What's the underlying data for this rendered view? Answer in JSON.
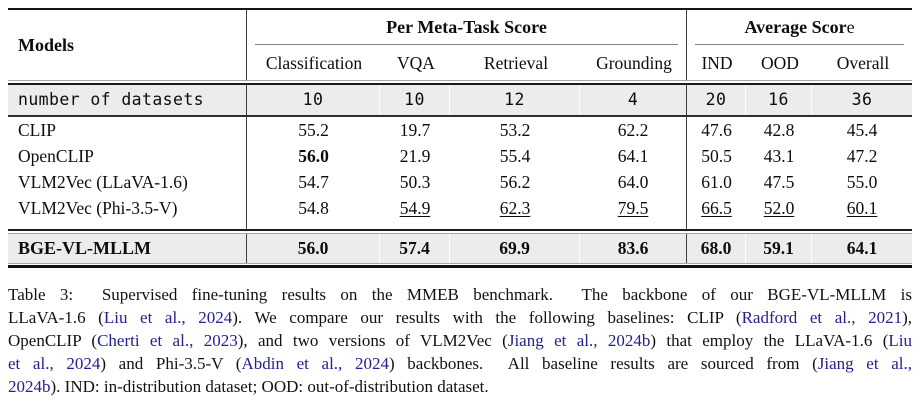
{
  "table": {
    "header": {
      "models_label": "Models",
      "groups": [
        {
          "name": "per-meta-task-score",
          "title_segments": [
            {
              "text": "Per Meta-Task Score",
              "bold": true
            }
          ],
          "columns": [
            "Classification",
            "VQA",
            "Retrieval",
            "Grounding"
          ]
        },
        {
          "name": "average-score",
          "title_segments": [
            {
              "text": "Average Scor",
              "bold": true
            },
            {
              "text": "e",
              "bold": false
            }
          ],
          "columns": [
            "IND",
            "OOD",
            "Overall"
          ]
        }
      ]
    },
    "meta_row": {
      "label": "number of datasets",
      "values": [
        "10",
        "10",
        "12",
        "4",
        "20",
        "16",
        "36"
      ]
    },
    "rows": [
      {
        "model": "CLIP",
        "values": [
          {
            "text": "55.2",
            "style": "normal"
          },
          {
            "text": "19.7",
            "style": "normal"
          },
          {
            "text": "53.2",
            "style": "normal"
          },
          {
            "text": "62.2",
            "style": "normal"
          },
          {
            "text": "47.6",
            "style": "normal"
          },
          {
            "text": "42.8",
            "style": "normal"
          },
          {
            "text": "45.4",
            "style": "normal"
          }
        ]
      },
      {
        "model": "OpenCLIP",
        "values": [
          {
            "text": "56.0",
            "style": "bold"
          },
          {
            "text": "21.9",
            "style": "normal"
          },
          {
            "text": "55.4",
            "style": "normal"
          },
          {
            "text": "64.1",
            "style": "normal"
          },
          {
            "text": "50.5",
            "style": "normal"
          },
          {
            "text": "43.1",
            "style": "normal"
          },
          {
            "text": "47.2",
            "style": "normal"
          }
        ]
      },
      {
        "model": "VLM2Vec (LLaVA-1.6)",
        "values": [
          {
            "text": "54.7",
            "style": "normal"
          },
          {
            "text": "50.3",
            "style": "normal"
          },
          {
            "text": "56.2",
            "style": "normal"
          },
          {
            "text": "64.0",
            "style": "normal"
          },
          {
            "text": "61.0",
            "style": "normal"
          },
          {
            "text": "47.5",
            "style": "normal"
          },
          {
            "text": "55.0",
            "style": "normal"
          }
        ]
      },
      {
        "model": "VLM2Vec (Phi-3.5-V)",
        "values": [
          {
            "text": "54.8",
            "style": "normal"
          },
          {
            "text": "54.9",
            "style": "underline"
          },
          {
            "text": "62.3",
            "style": "underline"
          },
          {
            "text": "79.5",
            "style": "underline"
          },
          {
            "text": "66.5",
            "style": "underline"
          },
          {
            "text": "52.0",
            "style": "underline"
          },
          {
            "text": "60.1",
            "style": "underline"
          }
        ]
      }
    ],
    "highlight_row": {
      "model": "BGE-VL-MLLM",
      "values": [
        {
          "text": "56.0",
          "style": "bold"
        },
        {
          "text": "57.4",
          "style": "bold"
        },
        {
          "text": "69.9",
          "style": "bold"
        },
        {
          "text": "83.6",
          "style": "bold"
        },
        {
          "text": "68.0",
          "style": "bold"
        },
        {
          "text": "59.1",
          "style": "bold"
        },
        {
          "text": "64.1",
          "style": "bold"
        }
      ]
    }
  },
  "caption": {
    "lines": [
      [
        {
          "text": "Table 3:  Supervised fine-tuning results on the MMEB benchmark.  The backbone of our BGE-VL-MLLM is",
          "cite": false
        }
      ],
      [
        {
          "text": "LLaVA-1.6 (",
          "cite": false
        },
        {
          "text": "Liu et al., 2024",
          "cite": true
        },
        {
          "text": "). We compare our results with the following baselines: CLIP (",
          "cite": false
        },
        {
          "text": "Radford et al., 2021",
          "cite": true
        },
        {
          "text": "),",
          "cite": false
        }
      ],
      [
        {
          "text": "OpenCLIP (",
          "cite": false
        },
        {
          "text": "Cherti et al., 2023",
          "cite": true
        },
        {
          "text": "), and two versions of VLM2Vec (",
          "cite": false
        },
        {
          "text": "Jiang et al., 2024b",
          "cite": true
        },
        {
          "text": ") that employ the LLaVA-1.6 (",
          "cite": false
        },
        {
          "text": "Liu",
          "cite": true
        }
      ],
      [
        {
          "text": "et al., 2024",
          "cite": true
        },
        {
          "text": ") and Phi-3.5-V (",
          "cite": false
        },
        {
          "text": "Abdin et al., 2024",
          "cite": true
        },
        {
          "text": ") backbones.  All baseline results are sourced from (",
          "cite": false
        },
        {
          "text": "Jiang et al.,",
          "cite": true
        }
      ],
      [
        {
          "text": "2024b",
          "cite": true
        },
        {
          "text": "). IND: in-distribution dataset; OOD: out-of-distribution dataset.",
          "cite": false
        }
      ]
    ]
  },
  "colors": {
    "citation_blue": "#22218F",
    "gray_row_bg": "#ececec",
    "rule_dark": "#1c1c1c",
    "rule_light": "#a8a8a8",
    "text": "#0d0d0d"
  }
}
